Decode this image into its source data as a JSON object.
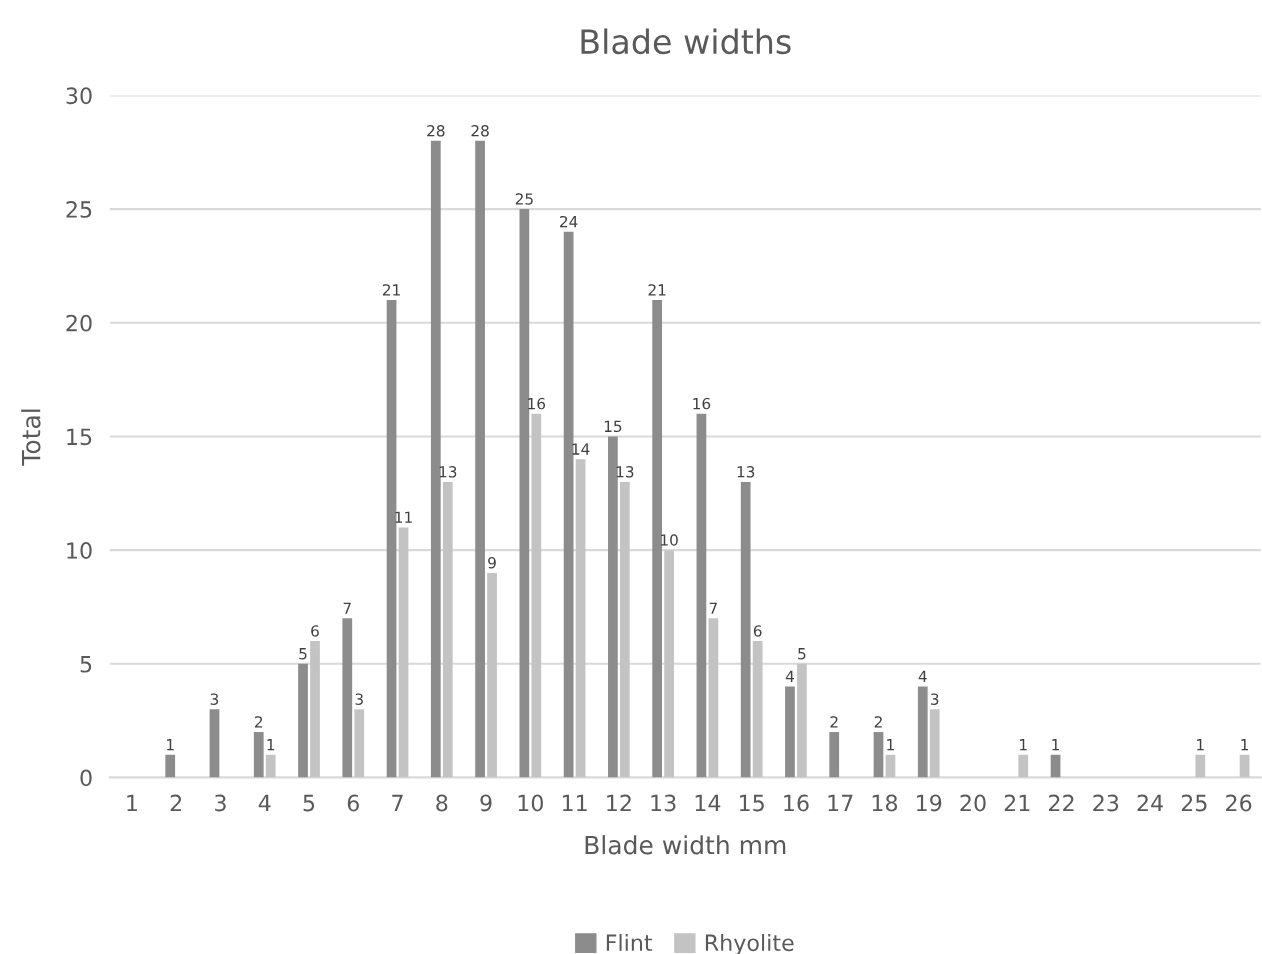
{
  "chart_data": {
    "type": "bar",
    "title": "Blade widths",
    "xlabel": "Blade width mm",
    "ylabel": "Total",
    "categories": [
      "1",
      "2",
      "3",
      "4",
      "5",
      "6",
      "7",
      "8",
      "9",
      "10",
      "11",
      "12",
      "13",
      "14",
      "15",
      "16",
      "17",
      "18",
      "19",
      "20",
      "21",
      "22",
      "23",
      "24",
      "25",
      "26"
    ],
    "series": [
      {
        "name": "Flint",
        "color": "#8c8c8c",
        "values": [
          null,
          1,
          3,
          2,
          5,
          7,
          21,
          28,
          28,
          25,
          24,
          15,
          21,
          16,
          13,
          4,
          2,
          2,
          4,
          null,
          null,
          1,
          null,
          null,
          null,
          null
        ]
      },
      {
        "name": "Rhyolite",
        "color": "#c3c3c3",
        "values": [
          null,
          null,
          null,
          1,
          6,
          3,
          11,
          13,
          9,
          16,
          14,
          13,
          10,
          7,
          6,
          5,
          null,
          1,
          3,
          null,
          1,
          null,
          null,
          null,
          1,
          1
        ]
      }
    ],
    "ylim": [
      0,
      30
    ],
    "yticks": [
      0,
      5,
      10,
      15,
      20,
      25,
      30
    ],
    "grid": "y",
    "legend": "bottom",
    "data_labels": true
  }
}
